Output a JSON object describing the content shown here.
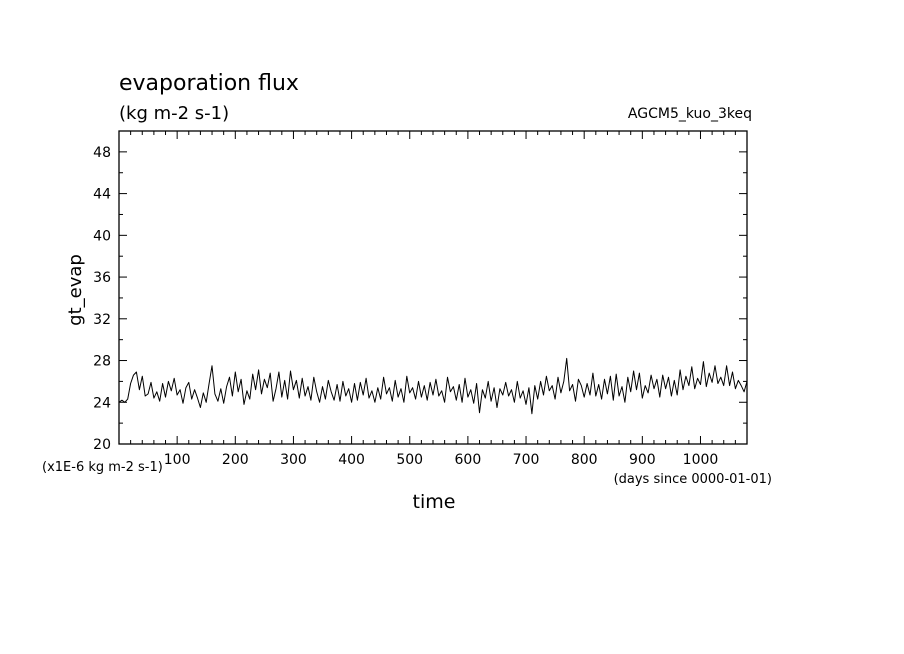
{
  "chart_data": {
    "type": "line",
    "title": "evaporation flux",
    "subtitle": "(kg m-2 s-1)",
    "run_label": "AGCM5_kuo_3keq",
    "xlabel": "time",
    "x_units": "(days since 0000-01-01)",
    "ylabel": "gt_evap",
    "y_units": "(x1E-6 kg m-2 s-1)",
    "xlim": [
      0,
      1080
    ],
    "ylim": [
      20,
      50
    ],
    "x_ticks": [
      100,
      200,
      300,
      400,
      500,
      600,
      700,
      800,
      900,
      1000
    ],
    "y_ticks": [
      20,
      24,
      28,
      32,
      36,
      40,
      44,
      48
    ],
    "grid": false,
    "series": [
      {
        "values": [
          [
            0,
            24.0
          ],
          [
            5,
            24.2
          ],
          [
            10,
            24.0
          ],
          [
            15,
            24.3
          ],
          [
            20,
            25.8
          ],
          [
            25,
            26.6
          ],
          [
            30,
            26.9
          ],
          [
            35,
            25.2
          ],
          [
            40,
            26.5
          ],
          [
            45,
            24.6
          ],
          [
            50,
            24.8
          ],
          [
            55,
            25.9
          ],
          [
            60,
            24.4
          ],
          [
            65,
            25.0
          ],
          [
            70,
            24.1
          ],
          [
            75,
            25.8
          ],
          [
            80,
            24.5
          ],
          [
            85,
            26.0
          ],
          [
            90,
            25.1
          ],
          [
            95,
            26.3
          ],
          [
            100,
            24.7
          ],
          [
            105,
            25.2
          ],
          [
            110,
            23.9
          ],
          [
            115,
            25.4
          ],
          [
            120,
            25.9
          ],
          [
            125,
            24.3
          ],
          [
            130,
            25.2
          ],
          [
            135,
            24.4
          ],
          [
            140,
            23.5
          ],
          [
            145,
            24.9
          ],
          [
            150,
            24.0
          ],
          [
            155,
            25.8
          ],
          [
            160,
            27.5
          ],
          [
            165,
            24.8
          ],
          [
            170,
            24.1
          ],
          [
            175,
            25.3
          ],
          [
            180,
            23.9
          ],
          [
            185,
            25.5
          ],
          [
            190,
            26.4
          ],
          [
            195,
            24.6
          ],
          [
            200,
            26.9
          ],
          [
            205,
            25.0
          ],
          [
            210,
            26.2
          ],
          [
            215,
            23.8
          ],
          [
            220,
            25.1
          ],
          [
            225,
            24.3
          ],
          [
            230,
            26.7
          ],
          [
            235,
            25.2
          ],
          [
            240,
            27.1
          ],
          [
            245,
            24.8
          ],
          [
            250,
            26.2
          ],
          [
            255,
            25.4
          ],
          [
            260,
            26.8
          ],
          [
            265,
            24.1
          ],
          [
            270,
            25.3
          ],
          [
            275,
            26.9
          ],
          [
            280,
            24.5
          ],
          [
            285,
            26.1
          ],
          [
            290,
            24.3
          ],
          [
            295,
            27.0
          ],
          [
            300,
            25.2
          ],
          [
            305,
            26.1
          ],
          [
            310,
            24.4
          ],
          [
            315,
            26.3
          ],
          [
            320,
            24.6
          ],
          [
            325,
            25.5
          ],
          [
            330,
            24.2
          ],
          [
            335,
            26.4
          ],
          [
            340,
            25.0
          ],
          [
            345,
            24.0
          ],
          [
            350,
            25.5
          ],
          [
            355,
            24.3
          ],
          [
            360,
            26.1
          ],
          [
            365,
            25.0
          ],
          [
            370,
            24.2
          ],
          [
            375,
            25.7
          ],
          [
            380,
            24.1
          ],
          [
            385,
            26.0
          ],
          [
            390,
            24.6
          ],
          [
            395,
            25.3
          ],
          [
            400,
            24.0
          ],
          [
            405,
            25.8
          ],
          [
            410,
            24.2
          ],
          [
            415,
            25.9
          ],
          [
            420,
            24.7
          ],
          [
            425,
            26.3
          ],
          [
            430,
            24.4
          ],
          [
            435,
            25.1
          ],
          [
            440,
            24.0
          ],
          [
            445,
            25.4
          ],
          [
            450,
            24.3
          ],
          [
            455,
            26.4
          ],
          [
            460,
            24.8
          ],
          [
            465,
            25.4
          ],
          [
            470,
            24.1
          ],
          [
            475,
            26.1
          ],
          [
            480,
            24.5
          ],
          [
            485,
            25.3
          ],
          [
            490,
            24.0
          ],
          [
            495,
            26.5
          ],
          [
            500,
            24.9
          ],
          [
            505,
            25.4
          ],
          [
            510,
            24.3
          ],
          [
            515,
            26.0
          ],
          [
            520,
            24.5
          ],
          [
            525,
            25.6
          ],
          [
            530,
            24.2
          ],
          [
            535,
            25.9
          ],
          [
            540,
            24.7
          ],
          [
            545,
            26.2
          ],
          [
            550,
            24.6
          ],
          [
            555,
            25.1
          ],
          [
            560,
            24.0
          ],
          [
            565,
            26.4
          ],
          [
            570,
            25.0
          ],
          [
            575,
            25.5
          ],
          [
            580,
            24.2
          ],
          [
            585,
            25.7
          ],
          [
            590,
            24.0
          ],
          [
            595,
            26.3
          ],
          [
            600,
            24.5
          ],
          [
            605,
            25.2
          ],
          [
            610,
            23.9
          ],
          [
            615,
            25.8
          ],
          [
            620,
            23.0
          ],
          [
            625,
            25.2
          ],
          [
            630,
            24.4
          ],
          [
            635,
            26.0
          ],
          [
            640,
            24.1
          ],
          [
            645,
            25.4
          ],
          [
            650,
            23.5
          ],
          [
            655,
            25.3
          ],
          [
            660,
            24.7
          ],
          [
            665,
            25.9
          ],
          [
            670,
            24.6
          ],
          [
            675,
            25.2
          ],
          [
            680,
            24.0
          ],
          [
            685,
            26.0
          ],
          [
            690,
            24.4
          ],
          [
            695,
            25.1
          ],
          [
            700,
            23.8
          ],
          [
            705,
            25.4
          ],
          [
            710,
            22.9
          ],
          [
            715,
            25.6
          ],
          [
            720,
            24.3
          ],
          [
            725,
            26.0
          ],
          [
            730,
            24.7
          ],
          [
            735,
            26.5
          ],
          [
            740,
            25.1
          ],
          [
            745,
            25.6
          ],
          [
            750,
            24.3
          ],
          [
            755,
            26.4
          ],
          [
            760,
            24.9
          ],
          [
            765,
            26.0
          ],
          [
            770,
            28.2
          ],
          [
            775,
            25.1
          ],
          [
            780,
            25.7
          ],
          [
            785,
            24.1
          ],
          [
            790,
            26.2
          ],
          [
            795,
            25.6
          ],
          [
            800,
            24.5
          ],
          [
            805,
            25.8
          ],
          [
            810,
            24.7
          ],
          [
            815,
            26.8
          ],
          [
            820,
            24.6
          ],
          [
            825,
            25.7
          ],
          [
            830,
            24.3
          ],
          [
            835,
            26.2
          ],
          [
            840,
            24.8
          ],
          [
            845,
            26.5
          ],
          [
            850,
            24.2
          ],
          [
            855,
            26.7
          ],
          [
            860,
            24.6
          ],
          [
            865,
            25.5
          ],
          [
            870,
            24.0
          ],
          [
            875,
            26.4
          ],
          [
            880,
            25.0
          ],
          [
            885,
            27.0
          ],
          [
            890,
            25.2
          ],
          [
            895,
            26.8
          ],
          [
            900,
            24.4
          ],
          [
            905,
            25.6
          ],
          [
            910,
            24.9
          ],
          [
            915,
            26.6
          ],
          [
            920,
            25.3
          ],
          [
            925,
            26.2
          ],
          [
            930,
            24.5
          ],
          [
            935,
            26.6
          ],
          [
            940,
            25.3
          ],
          [
            945,
            26.4
          ],
          [
            950,
            24.6
          ],
          [
            955,
            26.1
          ],
          [
            960,
            24.7
          ],
          [
            965,
            27.1
          ],
          [
            970,
            25.2
          ],
          [
            975,
            26.5
          ],
          [
            980,
            25.6
          ],
          [
            985,
            27.4
          ],
          [
            990,
            25.3
          ],
          [
            995,
            26.3
          ],
          [
            1000,
            25.7
          ],
          [
            1005,
            27.9
          ],
          [
            1010,
            25.5
          ],
          [
            1015,
            26.8
          ],
          [
            1020,
            25.9
          ],
          [
            1025,
            27.5
          ],
          [
            1030,
            25.8
          ],
          [
            1035,
            26.4
          ],
          [
            1040,
            25.6
          ],
          [
            1045,
            27.5
          ],
          [
            1050,
            25.6
          ],
          [
            1055,
            26.9
          ],
          [
            1060,
            25.3
          ],
          [
            1065,
            26.1
          ],
          [
            1070,
            25.6
          ],
          [
            1075,
            25.0
          ],
          [
            1080,
            26.0
          ]
        ],
        "color": "#000000"
      }
    ]
  }
}
